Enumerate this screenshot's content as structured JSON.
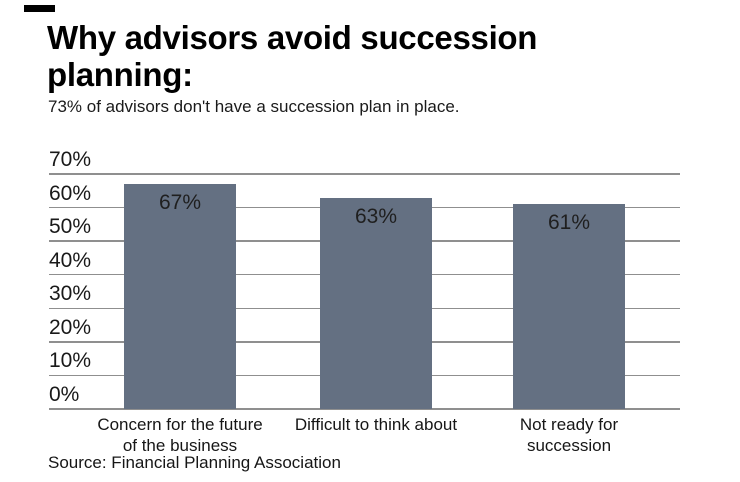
{
  "header": {
    "title": "Why advisors avoid succession\nplanning:",
    "subtitle": "73% of advisors don't have a succession plan in place."
  },
  "footer": {
    "source": "Source: Financial Planning Association"
  },
  "colors": {
    "bar": "#647082",
    "gridline": "#8f8f8f",
    "text": "#111111",
    "background": "#ffffff"
  },
  "chart_data": {
    "type": "bar",
    "title": "Why advisors avoid succession planning:",
    "subtitle": "73% of advisors don't have a succession plan in place.",
    "categories": [
      "Concern for the future\nof the business",
      "Difficult to think about",
      "Not ready for\nsuccession"
    ],
    "values": [
      67,
      63,
      61
    ],
    "value_labels": [
      "67%",
      "63%",
      "61%"
    ],
    "yticks": [
      70,
      60,
      50,
      40,
      30,
      20,
      10,
      0
    ],
    "ytick_labels": [
      "70%",
      "60%",
      "50%",
      "40%",
      "30%",
      "20%",
      "10%",
      "0%"
    ],
    "ylim": [
      0,
      70
    ],
    "xlabel": "",
    "ylabel": "",
    "grid": true,
    "legend": false,
    "source": "Source: Financial Planning Association"
  }
}
